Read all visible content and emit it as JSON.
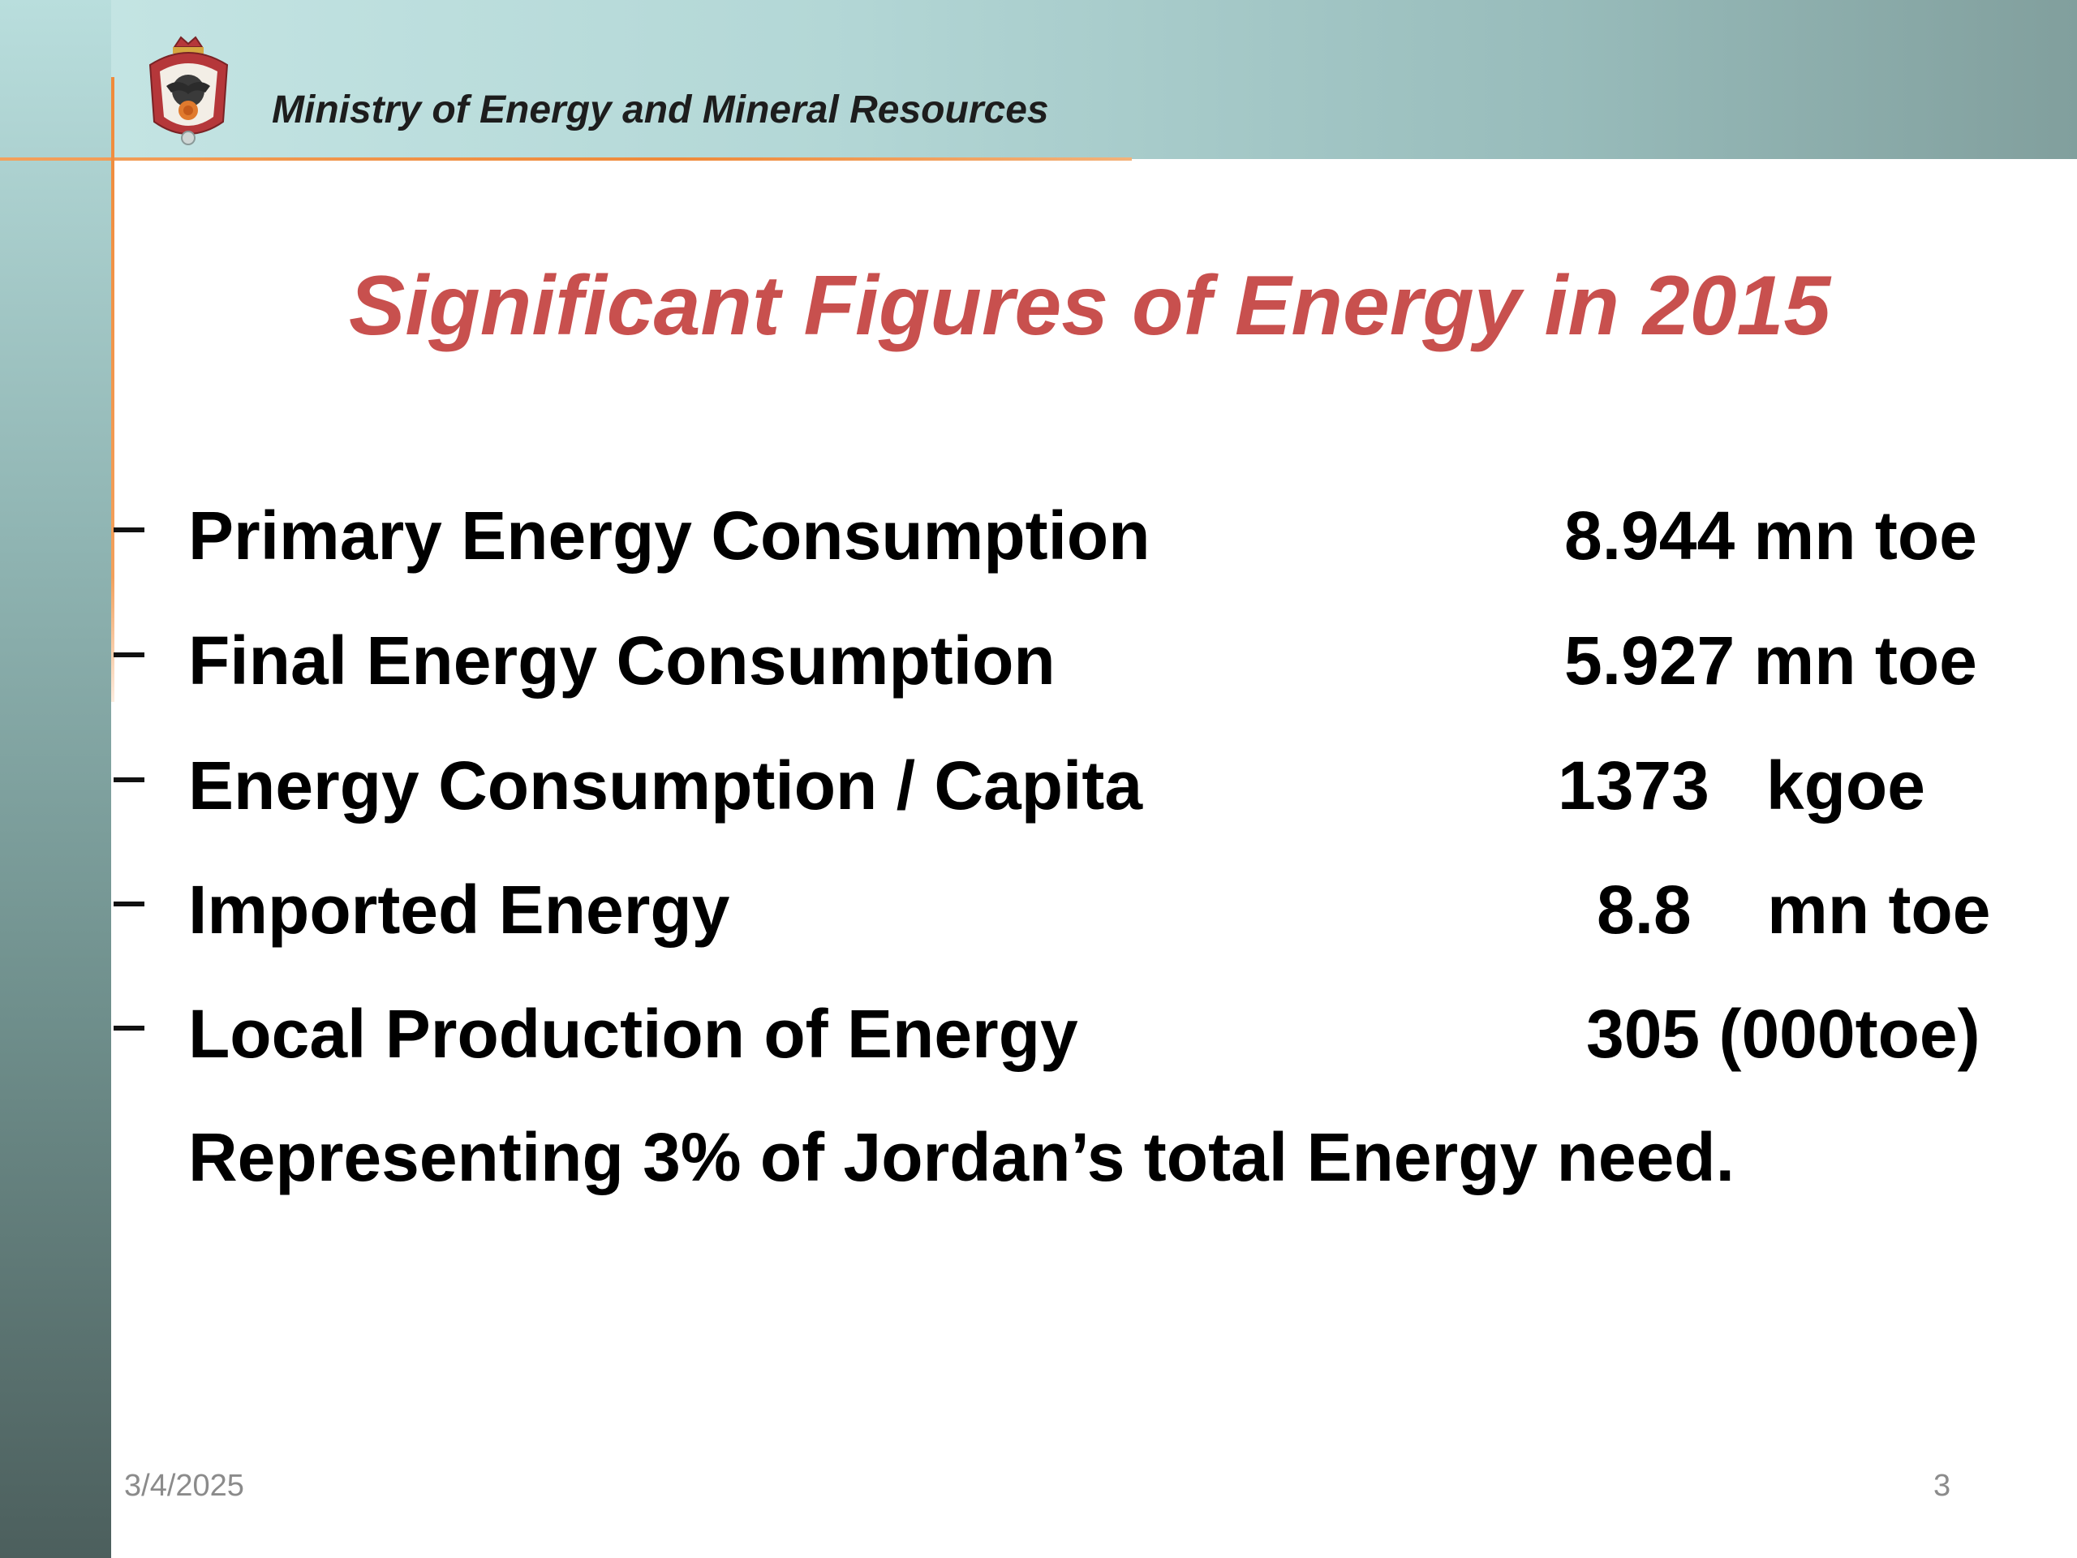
{
  "header": {
    "ministry": "Ministry  of Energy and Mineral  Resources"
  },
  "slide": {
    "title": "Significant Figures of Energy in 2015",
    "items": [
      {
        "label": "Primary Energy Consumption",
        "value": "8.944  mn toe"
      },
      {
        "label": "Final Energy Consumption",
        "value": "5.927  mn toe"
      },
      {
        "label": "Energy Consumption / Capita",
        "value": "1373   kgoe"
      },
      {
        "label": "Imported Energy",
        "value": "8.8    mn toe"
      },
      {
        "label": "Local Production of Energy",
        "value": "305 (000toe)"
      }
    ],
    "note": "Representing 3% of Jordan’s total Energy need."
  },
  "footer": {
    "date": "3/4/2025",
    "page": "3"
  },
  "colors": {
    "title": "#c8504e",
    "accent": "#f08a3a"
  },
  "icons": {
    "emblem": "coat-of-arms-icon"
  }
}
